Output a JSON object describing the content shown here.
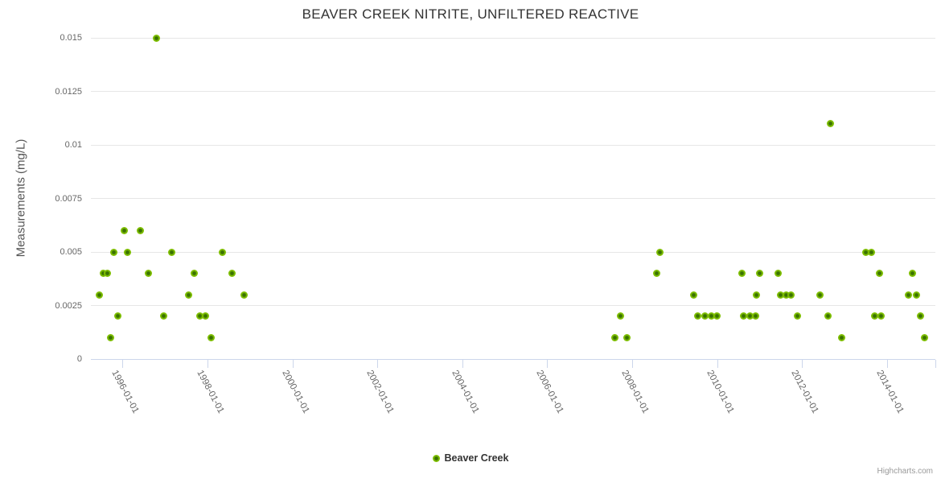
{
  "title": "BEAVER CREEK NITRITE, UNFILTERED REACTIVE",
  "legend": {
    "label": "Beaver Creek",
    "marker_icon": "circle-marker-icon"
  },
  "credits": "Highcharts.com",
  "colors": {
    "marker_outer": "#80c002",
    "marker_inner": "#3a7201",
    "grid_line": "#e6e6e6",
    "axis_line": "#ccd6eb",
    "title_text": "#333333",
    "axis_text": "#666666",
    "credits_text": "#999999"
  },
  "chart_data": {
    "type": "scatter",
    "title": "BEAVER CREEK NITRITE, UNFILTERED REACTIVE",
    "xlabel": "",
    "ylabel": "Measurements (mg/L)",
    "ylim": [
      0,
      0.015
    ],
    "yticks": [
      0,
      0.0025,
      0.005,
      0.0075,
      0.01,
      0.0125,
      0.015
    ],
    "ytick_labels": [
      "0",
      "0.0025",
      "0.005",
      "0.0075",
      "0.01",
      "0.0125",
      "0.015"
    ],
    "xticks": [
      "1996-01-01",
      "1998-01-01",
      "2000-01-01",
      "2002-01-01",
      "2004-01-01",
      "2006-01-01",
      "2008-01-01",
      "2010-01-01",
      "2012-01-01",
      "2014-01-01"
    ],
    "x_range": [
      "1995-04-03",
      "2015-02-22"
    ],
    "grid": true,
    "legend_position": "bottom-center",
    "series": [
      {
        "name": "Beaver Creek",
        "points": [
          {
            "date": "1995-06-15",
            "value": 0.003
          },
          {
            "date": "1995-07-20",
            "value": 0.004
          },
          {
            "date": "1995-08-25",
            "value": 0.004
          },
          {
            "date": "1995-09-20",
            "value": 0.001
          },
          {
            "date": "1995-10-20",
            "value": 0.005
          },
          {
            "date": "1995-11-25",
            "value": 0.002
          },
          {
            "date": "1996-01-15",
            "value": 0.006
          },
          {
            "date": "1996-02-15",
            "value": 0.005
          },
          {
            "date": "1996-06-05",
            "value": 0.006
          },
          {
            "date": "1996-08-10",
            "value": 0.004
          },
          {
            "date": "1996-10-20",
            "value": 0.015
          },
          {
            "date": "1996-12-20",
            "value": 0.002
          },
          {
            "date": "1997-03-01",
            "value": 0.005
          },
          {
            "date": "1997-07-25",
            "value": 0.003
          },
          {
            "date": "1997-09-10",
            "value": 0.004
          },
          {
            "date": "1997-10-25",
            "value": 0.002
          },
          {
            "date": "1997-12-15",
            "value": 0.002
          },
          {
            "date": "1998-01-30",
            "value": 0.001
          },
          {
            "date": "1998-05-10",
            "value": 0.005
          },
          {
            "date": "1998-07-30",
            "value": 0.004
          },
          {
            "date": "1998-11-10",
            "value": 0.003
          },
          {
            "date": "2007-08-05",
            "value": 0.001
          },
          {
            "date": "2007-09-20",
            "value": 0.002
          },
          {
            "date": "2007-11-20",
            "value": 0.001
          },
          {
            "date": "2008-07-30",
            "value": 0.004
          },
          {
            "date": "2008-08-25",
            "value": 0.005
          },
          {
            "date": "2009-06-15",
            "value": 0.003
          },
          {
            "date": "2009-07-20",
            "value": 0.002
          },
          {
            "date": "2009-09-20",
            "value": 0.002
          },
          {
            "date": "2009-11-15",
            "value": 0.002
          },
          {
            "date": "2010-01-01",
            "value": 0.002
          },
          {
            "date": "2010-08-05",
            "value": 0.004
          },
          {
            "date": "2010-08-15",
            "value": 0.002
          },
          {
            "date": "2010-10-10",
            "value": 0.002
          },
          {
            "date": "2010-12-01",
            "value": 0.002
          },
          {
            "date": "2010-12-05",
            "value": 0.003
          },
          {
            "date": "2011-01-05",
            "value": 0.004
          },
          {
            "date": "2011-06-10",
            "value": 0.004
          },
          {
            "date": "2011-07-01",
            "value": 0.003
          },
          {
            "date": "2011-08-15",
            "value": 0.003
          },
          {
            "date": "2011-09-30",
            "value": 0.003
          },
          {
            "date": "2011-11-25",
            "value": 0.002
          },
          {
            "date": "2012-06-05",
            "value": 0.003
          },
          {
            "date": "2012-08-10",
            "value": 0.002
          },
          {
            "date": "2012-09-05",
            "value": 0.011
          },
          {
            "date": "2012-12-10",
            "value": 0.001
          },
          {
            "date": "2013-06-30",
            "value": 0.005
          },
          {
            "date": "2013-08-20",
            "value": 0.005
          },
          {
            "date": "2013-09-15",
            "value": 0.002
          },
          {
            "date": "2013-10-25",
            "value": 0.004
          },
          {
            "date": "2013-11-15",
            "value": 0.002
          },
          {
            "date": "2014-07-01",
            "value": 0.003
          },
          {
            "date": "2014-08-05",
            "value": 0.004
          },
          {
            "date": "2014-09-10",
            "value": 0.003
          },
          {
            "date": "2014-10-15",
            "value": 0.002
          },
          {
            "date": "2014-11-20",
            "value": 0.001
          }
        ]
      }
    ]
  }
}
